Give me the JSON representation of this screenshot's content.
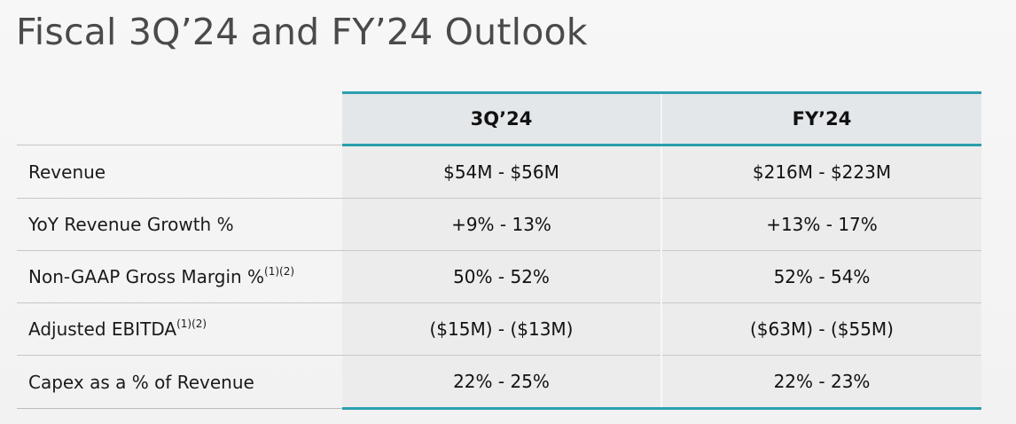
{
  "title": "Fiscal 3Q’24 and FY’24 Outlook",
  "columns": [
    "3Q’24",
    "FY’24"
  ],
  "rows": [
    {
      "label": "Revenue",
      "sup": "",
      "q3": "$54M - $56M",
      "fy": "$216M - $223M"
    },
    {
      "label": "YoY Revenue Growth %",
      "sup": "",
      "q3": "+9% - 13%",
      "fy": "+13% - 17%"
    },
    {
      "label": "Non-GAAP Gross Margin %",
      "sup": "(1)(2)",
      "q3": "50% - 52%",
      "fy": "52% - 54%"
    },
    {
      "label": "Adjusted EBITDA",
      "sup": "(1)(2)",
      "q3": "($15M) - ($13M)",
      "fy": "($63M) - ($55M)"
    },
    {
      "label": "Capex as a % of Revenue",
      "sup": "",
      "q3": "22% - 25%",
      "fy": "22% - 23%"
    }
  ]
}
